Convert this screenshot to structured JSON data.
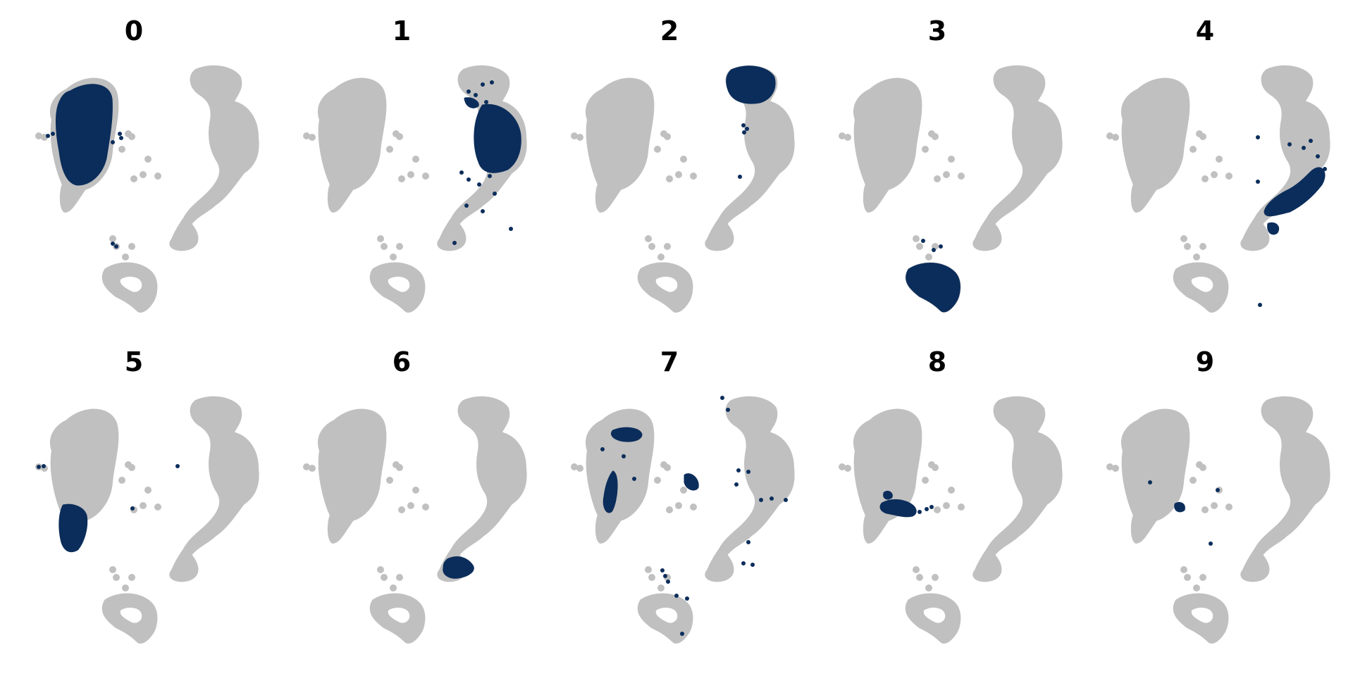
{
  "colors": {
    "background_cells": "#c0c0c0",
    "highlight_cells": "#0b2d5b"
  },
  "chart_data": {
    "type": "scatter",
    "layout": "small multiples, 2 rows x 5 columns, one panel per cluster",
    "grid": false,
    "axes_visible": false,
    "legend": "none",
    "panels": [
      {
        "title": "0",
        "highlighted_region": "left elongated island, upper portion",
        "stray_points": 10
      },
      {
        "title": "1",
        "highlighted_region": "right island, upper-middle body",
        "stray_points": 14
      },
      {
        "title": "2",
        "highlighted_region": "right island, top cap",
        "stray_points": 4
      },
      {
        "title": "3",
        "highlighted_region": "bottom ring-shaped island",
        "stray_points": 3
      },
      {
        "title": "4",
        "highlighted_region": "right island, lower diagonal arm",
        "stray_points": 8
      },
      {
        "title": "5",
        "highlighted_region": "left island, lower tip",
        "stray_points": 4
      },
      {
        "title": "6",
        "highlighted_region": "right island, bottom lobe",
        "stray_points": 0
      },
      {
        "title": "7",
        "highlighted_region": "scattered across left island and small middle cluster",
        "stray_points": 20
      },
      {
        "title": "8",
        "highlighted_region": "small middle clusters",
        "stray_points": 3
      },
      {
        "title": "9",
        "highlighted_region": "small middle cluster dot",
        "stray_points": 3
      }
    ]
  }
}
